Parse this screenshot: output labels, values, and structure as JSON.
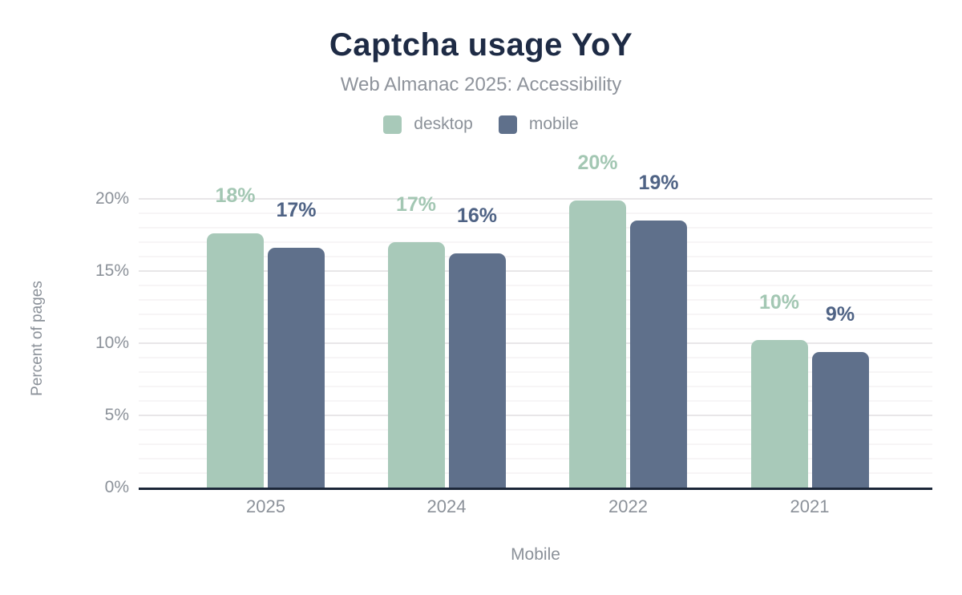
{
  "header": {
    "title": "Captcha usage YoY",
    "subtitle": "Web Almanac 2025: Accessibility"
  },
  "legend": [
    {
      "label": "desktop",
      "color": "#a8c9b9"
    },
    {
      "label": "mobile",
      "color": "#5f708b"
    }
  ],
  "axes": {
    "ylabel": "Percent of pages",
    "xlabel": "Mobile"
  },
  "chart_data": {
    "type": "bar",
    "title": "Captcha usage YoY",
    "subtitle": "Web Almanac 2025: Accessibility",
    "categories": [
      "2025",
      "2024",
      "2022",
      "2021"
    ],
    "series": [
      {
        "name": "desktop",
        "color": "#a8c9b9",
        "label_color": "#a3c7b3",
        "values": [
          17.6,
          17.0,
          19.9,
          10.2
        ],
        "labels": [
          "18%",
          "17%",
          "20%",
          "10%"
        ]
      },
      {
        "name": "mobile",
        "color": "#5f708b",
        "label_color": "#4f6385",
        "values": [
          16.6,
          16.2,
          18.5,
          9.4
        ],
        "labels": [
          "17%",
          "16%",
          "19%",
          "9%"
        ]
      }
    ],
    "xlabel": "Mobile",
    "ylabel": "Percent of pages",
    "ylim": [
      0,
      22
    ],
    "yticks": [
      {
        "label": "0%",
        "value": 0
      },
      {
        "label": "5%",
        "value": 5
      },
      {
        "label": "10%",
        "value": 10
      },
      {
        "label": "15%",
        "value": 15
      },
      {
        "label": "20%",
        "value": 20
      }
    ],
    "grid": "horizontal, minor every 1%, major every 5%",
    "legend_position": "top",
    "colors": {
      "title": "#1e2b45",
      "muted_text": "#8b9199",
      "axis_line": "#1b2638",
      "grid_minor": "#f7f5f6",
      "grid_major": "#e8e6e8",
      "background": "#ffffff"
    }
  }
}
